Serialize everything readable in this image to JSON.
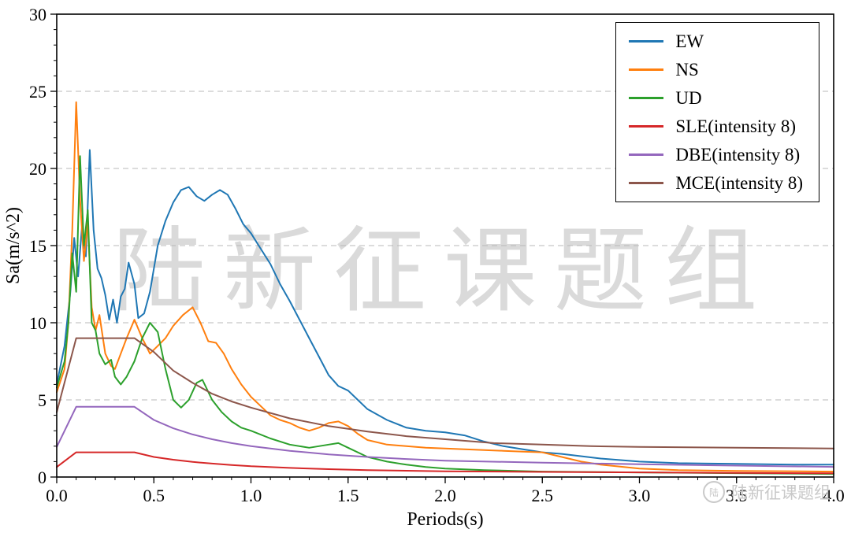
{
  "watermark": {
    "text": "陆新征课题组",
    "corner_text": "陆新征课题组",
    "color": "#dadada"
  },
  "chart_data": {
    "type": "line",
    "title": "",
    "xlabel": "Periods(s)",
    "ylabel": "Sa(m/s^2)",
    "xlim": [
      0,
      4
    ],
    "ylim": [
      0,
      30
    ],
    "xticks": [
      0,
      0.5,
      1.0,
      1.5,
      2.0,
      2.5,
      3.0,
      3.5,
      4.0
    ],
    "xtick_labels": [
      "0.0",
      "0.5",
      "1.0",
      "1.5",
      "2.0",
      "2.5",
      "3.0",
      "3.5",
      "4.0"
    ],
    "yticks": [
      0,
      5,
      10,
      15,
      20,
      25,
      30
    ],
    "ytick_labels": [
      "0",
      "5",
      "10",
      "15",
      "20",
      "25",
      "30"
    ],
    "grid": {
      "horizontal": true,
      "vertical": false,
      "style": "dashed",
      "color": "#b8b8b8"
    },
    "legend_position": "upper right",
    "series": [
      {
        "name": "EW",
        "color": "#1f77b4",
        "x": [
          0,
          0.04,
          0.07,
          0.09,
          0.11,
          0.13,
          0.15,
          0.17,
          0.19,
          0.21,
          0.23,
          0.25,
          0.27,
          0.29,
          0.31,
          0.33,
          0.35,
          0.37,
          0.4,
          0.42,
          0.45,
          0.48,
          0.52,
          0.56,
          0.6,
          0.64,
          0.68,
          0.72,
          0.76,
          0.8,
          0.84,
          0.88,
          0.92,
          0.96,
          1.0,
          1.05,
          1.1,
          1.15,
          1.2,
          1.25,
          1.3,
          1.35,
          1.4,
          1.45,
          1.5,
          1.55,
          1.6,
          1.7,
          1.8,
          1.9,
          2.0,
          2.1,
          2.2,
          2.3,
          2.4,
          2.5,
          2.6,
          2.8,
          3.0,
          3.2,
          3.5,
          3.8,
          4.0
        ],
        "y": [
          6.0,
          8.5,
          12.0,
          15.5,
          13.0,
          16.2,
          14.3,
          21.2,
          16.0,
          13.5,
          12.9,
          11.8,
          10.2,
          11.5,
          10.0,
          11.7,
          12.2,
          13.9,
          12.5,
          10.3,
          10.6,
          12.0,
          15.0,
          16.6,
          17.8,
          18.6,
          18.8,
          18.2,
          17.9,
          18.3,
          18.6,
          18.3,
          17.4,
          16.4,
          15.8,
          14.8,
          13.8,
          12.5,
          11.4,
          10.2,
          9.0,
          7.8,
          6.6,
          5.9,
          5.6,
          5.0,
          4.4,
          3.7,
          3.2,
          3.0,
          2.9,
          2.7,
          2.3,
          2.0,
          1.8,
          1.6,
          1.5,
          1.2,
          1.0,
          0.9,
          0.85,
          0.8,
          0.8
        ]
      },
      {
        "name": "NS",
        "color": "#ff7f0e",
        "x": [
          0,
          0.04,
          0.06,
          0.08,
          0.1,
          0.12,
          0.14,
          0.16,
          0.18,
          0.2,
          0.22,
          0.25,
          0.28,
          0.3,
          0.33,
          0.36,
          0.4,
          0.44,
          0.48,
          0.52,
          0.56,
          0.6,
          0.65,
          0.7,
          0.74,
          0.78,
          0.82,
          0.86,
          0.9,
          0.95,
          1.0,
          1.05,
          1.1,
          1.15,
          1.2,
          1.25,
          1.3,
          1.35,
          1.4,
          1.45,
          1.5,
          1.55,
          1.6,
          1.7,
          1.8,
          1.9,
          2.0,
          2.1,
          2.2,
          2.3,
          2.4,
          2.5,
          2.6,
          2.7,
          2.8,
          3.0,
          3.2,
          3.5,
          4.0
        ],
        "y": [
          5.5,
          7.0,
          10.0,
          16.0,
          24.3,
          18.0,
          14.0,
          16.5,
          11.0,
          9.5,
          10.5,
          8.0,
          7.2,
          7.0,
          8.0,
          9.0,
          10.2,
          9.0,
          8.0,
          8.5,
          9.0,
          9.8,
          10.5,
          11.0,
          10.0,
          8.8,
          8.7,
          8.0,
          7.0,
          6.0,
          5.2,
          4.6,
          4.0,
          3.7,
          3.5,
          3.2,
          3.0,
          3.2,
          3.5,
          3.6,
          3.3,
          2.8,
          2.4,
          2.1,
          2.0,
          1.9,
          1.85,
          1.8,
          1.75,
          1.7,
          1.65,
          1.6,
          1.3,
          1.0,
          0.8,
          0.55,
          0.45,
          0.4,
          0.35
        ]
      },
      {
        "name": "UD",
        "color": "#2ca02c",
        "x": [
          0,
          0.04,
          0.06,
          0.08,
          0.1,
          0.12,
          0.14,
          0.16,
          0.18,
          0.2,
          0.22,
          0.25,
          0.28,
          0.3,
          0.33,
          0.36,
          0.4,
          0.44,
          0.48,
          0.52,
          0.56,
          0.6,
          0.64,
          0.68,
          0.72,
          0.75,
          0.8,
          0.85,
          0.9,
          0.95,
          1.0,
          1.1,
          1.2,
          1.3,
          1.4,
          1.45,
          1.5,
          1.6,
          1.7,
          1.8,
          1.9,
          2.0,
          2.2,
          2.5,
          3.0,
          3.5,
          4.0
        ],
        "y": [
          5.8,
          7.5,
          10.0,
          14.5,
          12.0,
          20.8,
          15.0,
          17.3,
          10.0,
          9.5,
          8.0,
          7.3,
          7.6,
          6.5,
          6.0,
          6.5,
          7.5,
          9.0,
          10.0,
          9.4,
          7.0,
          5.0,
          4.5,
          5.0,
          6.1,
          6.3,
          5.0,
          4.2,
          3.6,
          3.2,
          3.0,
          2.5,
          2.1,
          1.9,
          2.1,
          2.2,
          1.9,
          1.3,
          1.0,
          0.8,
          0.65,
          0.55,
          0.45,
          0.35,
          0.3,
          0.25,
          0.2
        ]
      },
      {
        "name": "SLE(intensity 8)",
        "color": "#d62728",
        "x": [
          0,
          0.1,
          0.4,
          0.5,
          0.6,
          0.7,
          0.8,
          0.9,
          1.0,
          1.2,
          1.4,
          1.6,
          1.8,
          2.0,
          2.5,
          3.0,
          3.5,
          4.0
        ],
        "y": [
          0.65,
          1.6,
          1.6,
          1.3,
          1.12,
          0.98,
          0.87,
          0.78,
          0.7,
          0.59,
          0.51,
          0.45,
          0.41,
          0.37,
          0.33,
          0.3,
          0.27,
          0.24
        ]
      },
      {
        "name": "DBE(intensity 8)",
        "color": "#9467bd",
        "x": [
          0,
          0.1,
          0.4,
          0.5,
          0.6,
          0.7,
          0.8,
          0.9,
          1.0,
          1.2,
          1.4,
          1.6,
          1.8,
          2.0,
          2.5,
          3.0,
          3.5,
          4.0
        ],
        "y": [
          1.95,
          4.55,
          4.55,
          3.7,
          3.16,
          2.76,
          2.45,
          2.2,
          2.0,
          1.7,
          1.47,
          1.3,
          1.17,
          1.06,
          0.93,
          0.83,
          0.74,
          0.66
        ]
      },
      {
        "name": "MCE(intensity 8)",
        "color": "#8c564b",
        "x": [
          0,
          0.1,
          0.4,
          0.5,
          0.6,
          0.7,
          0.8,
          0.9,
          1.0,
          1.2,
          1.4,
          1.6,
          1.8,
          2.0,
          2.25,
          2.5,
          2.75,
          3.0,
          3.5,
          4.0
        ],
        "y": [
          4.2,
          9.0,
          9.0,
          8.1,
          6.9,
          6.1,
          5.4,
          4.9,
          4.5,
          3.8,
          3.3,
          2.95,
          2.65,
          2.45,
          2.2,
          2.1,
          2.0,
          1.95,
          1.9,
          1.85
        ]
      }
    ]
  }
}
